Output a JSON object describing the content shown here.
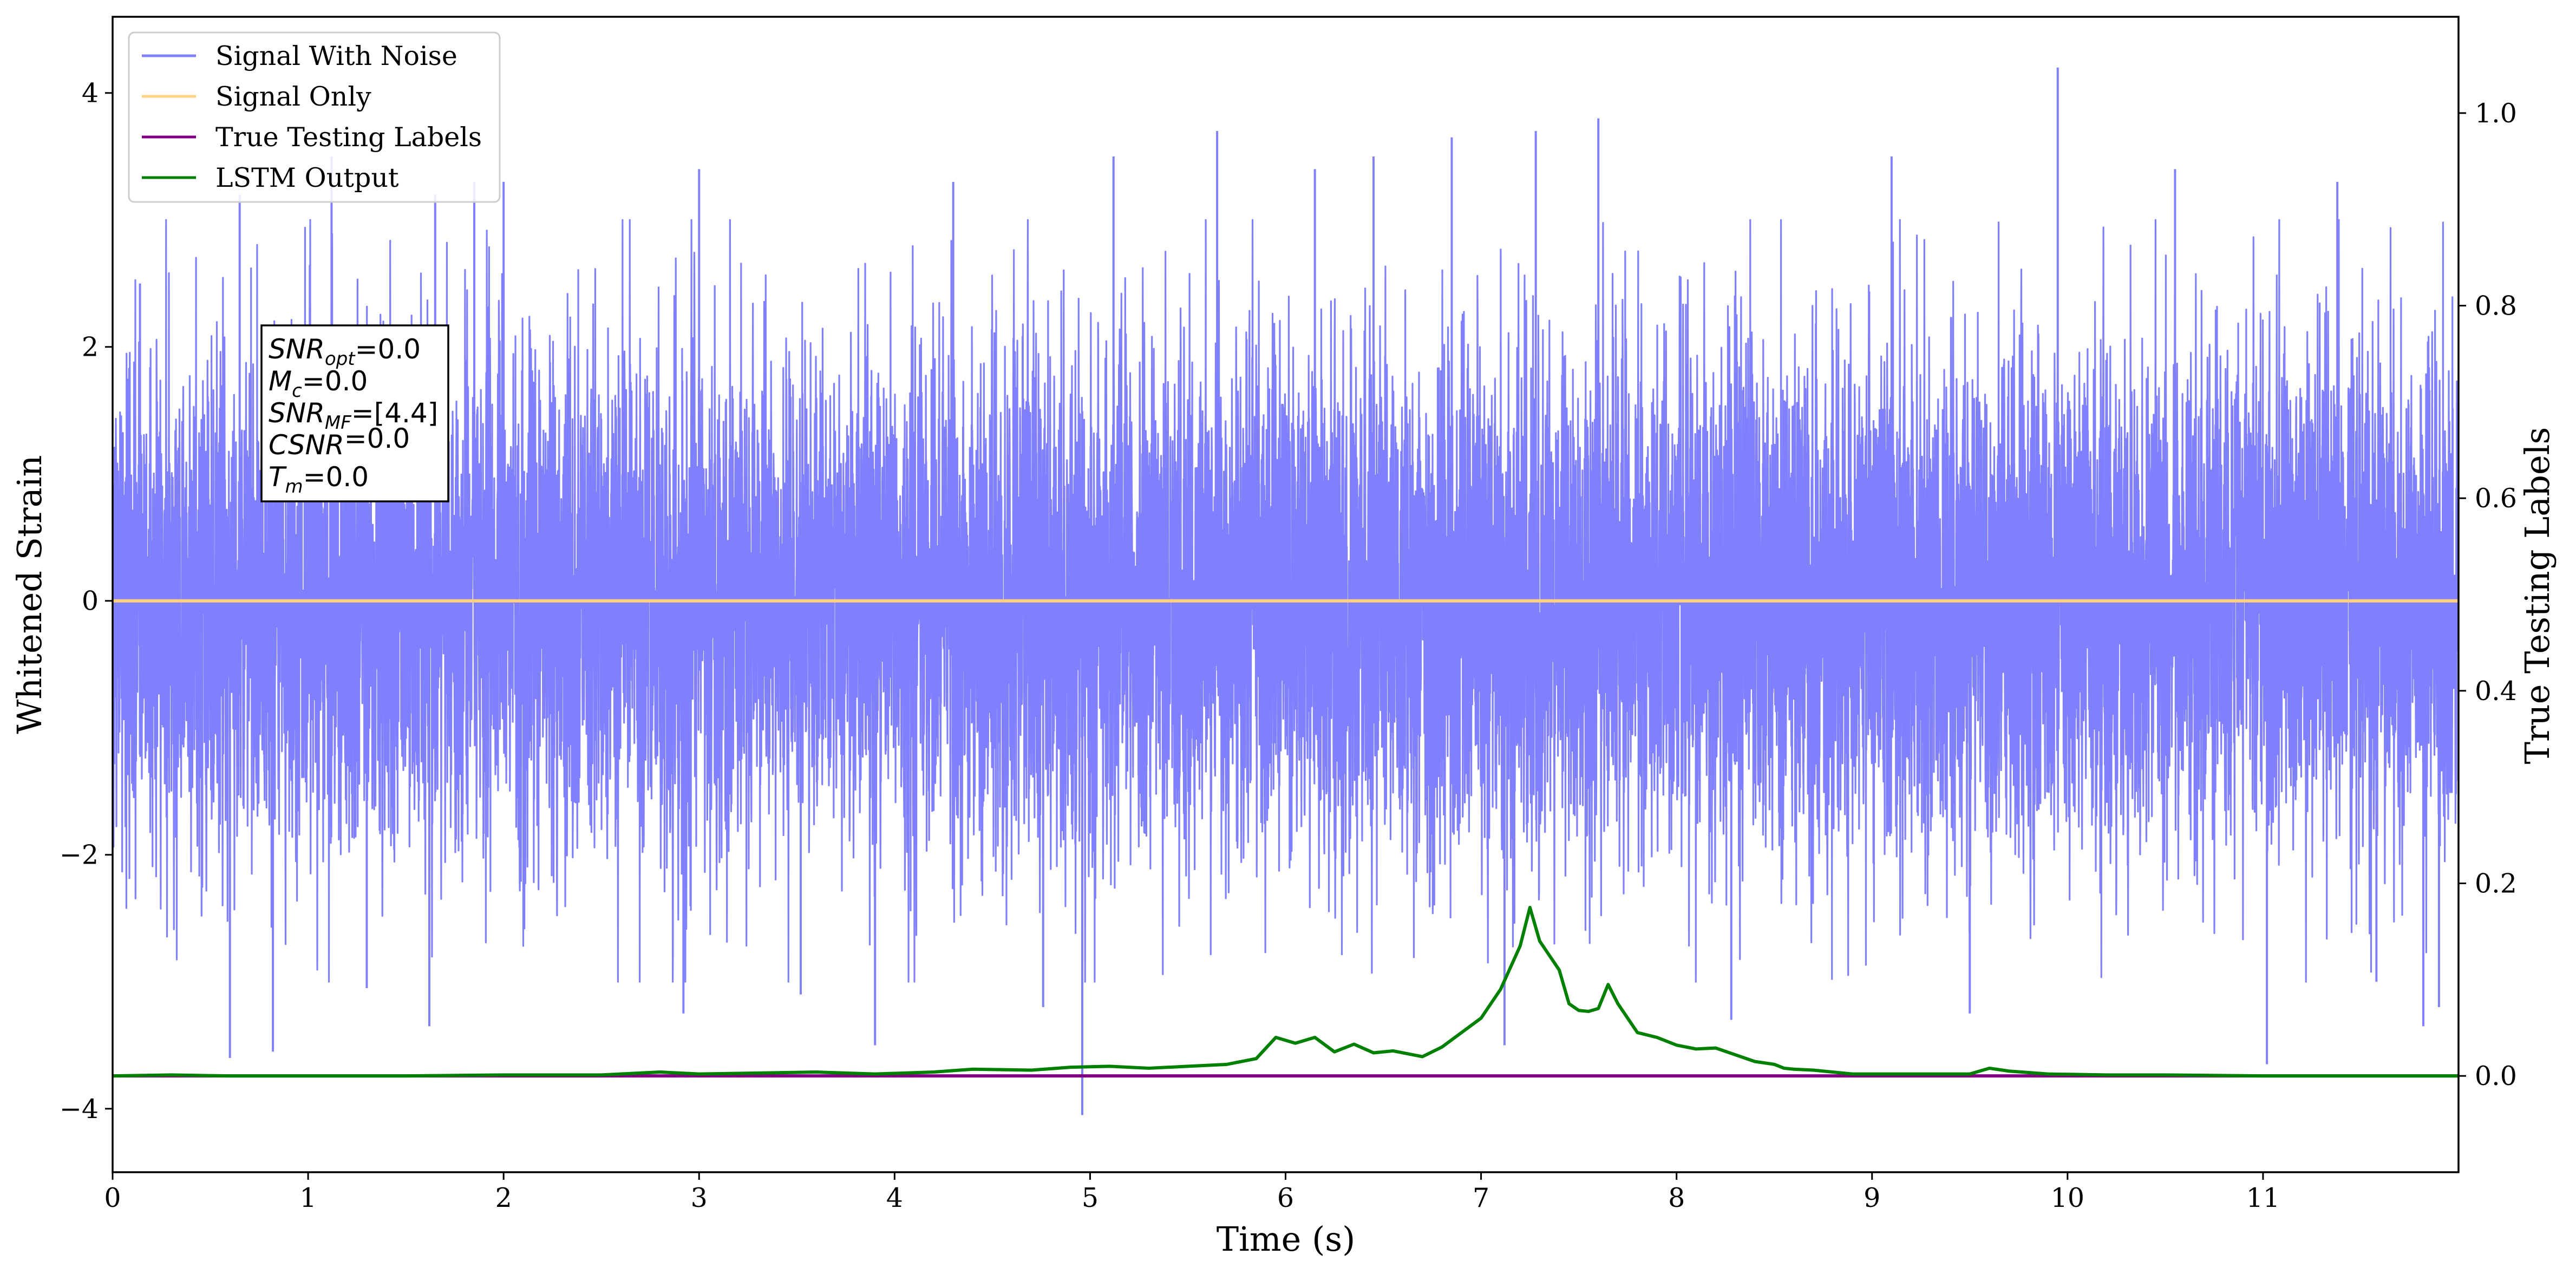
{
  "chart_data": {
    "type": "line",
    "title": "",
    "xlabel": "Time (s)",
    "ylabel": "Whitened Strain",
    "ylabel_right": "True Testing Labels",
    "xlim": [
      0,
      12.0
    ],
    "ylim": [
      -4.5,
      4.6
    ],
    "ylim_right": [
      -0.1,
      1.1
    ],
    "x_ticks": [
      0,
      1,
      2,
      3,
      4,
      5,
      6,
      7,
      8,
      9,
      10,
      11
    ],
    "x_tick_labels": [
      "0",
      "1",
      "2",
      "3",
      "4",
      "5",
      "6",
      "7",
      "8",
      "9",
      "10",
      "11"
    ],
    "y_ticks": [
      4,
      2,
      0,
      -2,
      -4
    ],
    "y_tick_labels": [
      "4",
      "2",
      "0",
      "−2",
      "−4"
    ],
    "y_ticks_right": [
      1.0,
      0.8,
      0.6,
      0.4,
      0.2,
      0.0
    ],
    "y_tick_labels_right": [
      "1.0",
      "0.8",
      "0.6",
      "0.4",
      "0.2",
      "0.0"
    ],
    "grid": false,
    "legend_position": "top-left",
    "series": [
      {
        "name": "Signal With Noise",
        "axis": "left",
        "color": "#8080ff",
        "kind": "noise",
        "sample_rate": 1024,
        "sigma": 1.0,
        "y_max_observed": 4.2,
        "y_min_observed": -4.05
      },
      {
        "name": "Signal Only",
        "axis": "left",
        "color": "#ffd080",
        "x": [
          0,
          12
        ],
        "y": [
          0,
          0
        ]
      },
      {
        "name": "True Testing Labels",
        "axis": "right",
        "color": "#800080",
        "x": [
          0,
          12
        ],
        "y": [
          0,
          0
        ]
      },
      {
        "name": "LSTM Output",
        "axis": "right",
        "color": "#008000",
        "x": [
          0,
          0.3,
          0.6,
          1.0,
          1.5,
          2.0,
          2.5,
          2.8,
          3.0,
          3.3,
          3.6,
          3.9,
          4.2,
          4.4,
          4.7,
          4.9,
          5.1,
          5.3,
          5.5,
          5.7,
          5.85,
          5.95,
          6.05,
          6.15,
          6.25,
          6.35,
          6.45,
          6.55,
          6.7,
          6.8,
          6.9,
          7.0,
          7.1,
          7.2,
          7.25,
          7.3,
          7.35,
          7.4,
          7.45,
          7.5,
          7.55,
          7.6,
          7.65,
          7.7,
          7.8,
          7.9,
          8.0,
          8.1,
          8.2,
          8.3,
          8.4,
          8.5,
          8.55,
          8.6,
          8.7,
          8.8,
          8.9,
          9.1,
          9.3,
          9.5,
          9.6,
          9.7,
          9.9,
          10.2,
          10.5,
          11.0,
          11.5,
          12.0
        ],
        "y": [
          0.0,
          0.001,
          0.0,
          0.0,
          0.0,
          0.001,
          0.001,
          0.004,
          0.002,
          0.003,
          0.004,
          0.002,
          0.004,
          0.007,
          0.006,
          0.009,
          0.01,
          0.008,
          0.01,
          0.012,
          0.018,
          0.04,
          0.034,
          0.04,
          0.025,
          0.033,
          0.024,
          0.026,
          0.02,
          0.03,
          0.045,
          0.06,
          0.09,
          0.135,
          0.175,
          0.14,
          0.125,
          0.11,
          0.075,
          0.068,
          0.067,
          0.07,
          0.095,
          0.075,
          0.045,
          0.04,
          0.032,
          0.028,
          0.029,
          0.022,
          0.015,
          0.012,
          0.008,
          0.007,
          0.006,
          0.004,
          0.002,
          0.002,
          0.002,
          0.002,
          0.008,
          0.005,
          0.002,
          0.001,
          0.001,
          0.0,
          0.0,
          0.0
        ]
      }
    ],
    "noise_spikes": [
      {
        "x": 0.14,
        "y": 2.5
      },
      {
        "x": 0.6,
        "y": -3.6
      },
      {
        "x": 0.65,
        "y": 3.2
      },
      {
        "x": 0.82,
        "y": -3.55
      },
      {
        "x": 1.12,
        "y": 3.5
      },
      {
        "x": 1.3,
        "y": -3.05
      },
      {
        "x": 1.62,
        "y": -3.35
      },
      {
        "x": 1.65,
        "y": 3.2
      },
      {
        "x": 1.85,
        "y": 3.3
      },
      {
        "x": 2.0,
        "y": 3.3
      },
      {
        "x": 2.92,
        "y": -3.25
      },
      {
        "x": 3.0,
        "y": 3.4
      },
      {
        "x": 3.52,
        "y": -3.1
      },
      {
        "x": 3.9,
        "y": -3.5
      },
      {
        "x": 4.3,
        "y": 3.3
      },
      {
        "x": 4.76,
        "y": -3.2
      },
      {
        "x": 4.96,
        "y": -4.05
      },
      {
        "x": 5.12,
        "y": 3.5
      },
      {
        "x": 5.65,
        "y": 3.7
      },
      {
        "x": 6.15,
        "y": 3.4
      },
      {
        "x": 6.45,
        "y": 3.5
      },
      {
        "x": 6.85,
        "y": 3.65
      },
      {
        "x": 7.12,
        "y": -3.5
      },
      {
        "x": 7.28,
        "y": 3.7
      },
      {
        "x": 7.6,
        "y": 3.8
      },
      {
        "x": 8.28,
        "y": -3.3
      },
      {
        "x": 9.1,
        "y": 3.5
      },
      {
        "x": 9.5,
        "y": -3.25
      },
      {
        "x": 9.95,
        "y": 4.2
      },
      {
        "x": 10.55,
        "y": 3.4
      },
      {
        "x": 11.02,
        "y": -3.65
      },
      {
        "x": 11.38,
        "y": 3.3
      },
      {
        "x": 11.58,
        "y": -3.0
      },
      {
        "x": 11.82,
        "y": -3.35
      },
      {
        "x": 11.9,
        "y": -3.2
      }
    ],
    "annotations": [
      {
        "base": "SNR",
        "sub": "opt",
        "value": "=0.0"
      },
      {
        "base": "M",
        "sub": "c",
        "value": "=0.0"
      },
      {
        "base": "SNR",
        "sub": "MF",
        "value": "=[4.4]"
      },
      {
        "base": "CSNR",
        "sub": "",
        "value": "=0.0"
      },
      {
        "base": "T",
        "sub": "m",
        "value": "=0.0"
      }
    ]
  }
}
